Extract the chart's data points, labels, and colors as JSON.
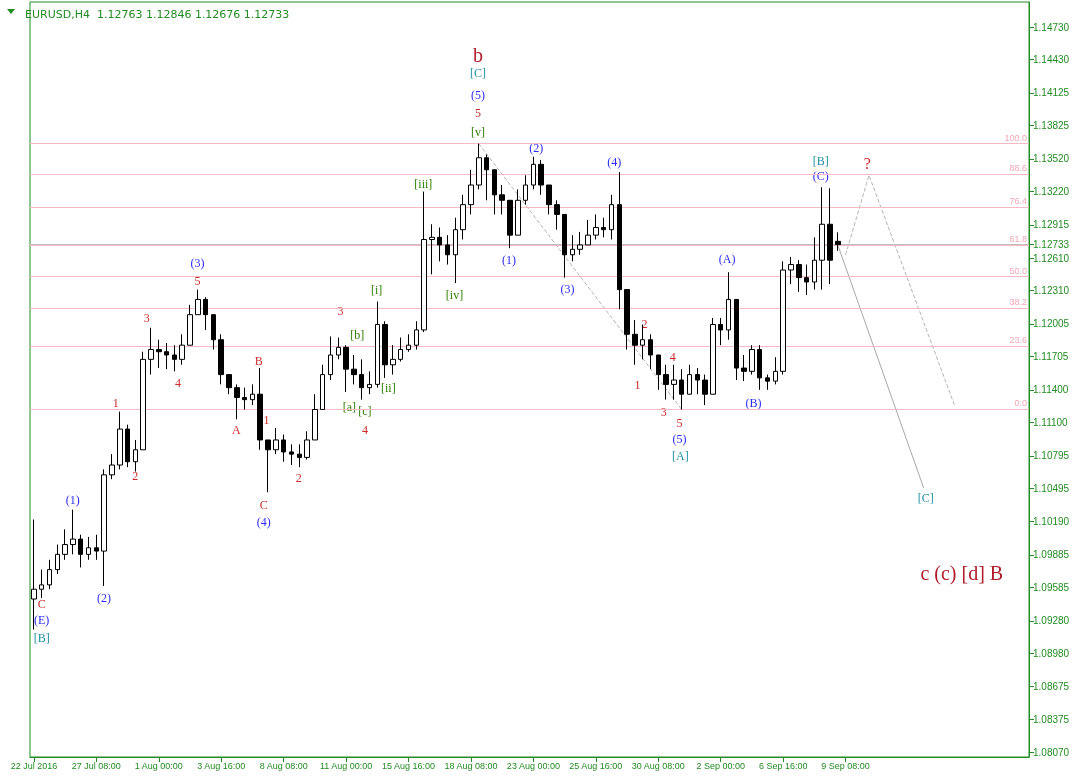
{
  "chart_data": {
    "type": "candlestick",
    "title": "EURUSD,H4  1.12763 1.12846 1.12676 1.12733",
    "color": "#000000",
    "categories": [
      "22 Jul 2016",
      null,
      null,
      null,
      null,
      null,
      null,
      null,
      "27 Jul 08:00",
      null,
      null,
      null,
      null,
      null,
      null,
      null,
      "1 Aug 00:00",
      null,
      null,
      null,
      null,
      null,
      null,
      null,
      "3 Aug 16:00",
      null,
      null,
      null,
      null,
      null,
      null,
      null,
      "8 Aug 08:00",
      null,
      null,
      null,
      null,
      null,
      null,
      null,
      "11 Aug 00:00",
      null,
      null,
      null,
      null,
      null,
      null,
      null,
      "15 Aug 16:00",
      null,
      null,
      null,
      null,
      null,
      null,
      null,
      "18 Aug 08:00",
      null,
      null,
      null,
      null,
      null,
      null,
      null,
      "23 Aug 00:00",
      null,
      null,
      null,
      null,
      null,
      null,
      null,
      "25 Aug 16:00",
      null,
      null,
      null,
      null,
      null,
      null,
      null,
      "30 Aug 08:00",
      null,
      null,
      null,
      null,
      null,
      null,
      null,
      "2 Sep 00:00",
      null,
      null,
      null,
      null,
      null,
      null,
      null,
      "6 Sep 16:00",
      null,
      null,
      null,
      null,
      null,
      null,
      null,
      "9 Sep 08:00",
      null,
      null,
      null,
      null,
      null,
      null,
      null,
      null,
      null,
      null,
      null,
      null,
      null,
      null,
      null,
      null,
      null,
      null,
      null,
      null,
      null,
      null,
      null
    ],
    "ohlc": [
      [
        1.0948,
        1.1021,
        1.092,
        1.0957
      ],
      [
        1.0957,
        1.0975,
        1.0949,
        1.0961
      ],
      [
        1.0961,
        1.0984,
        1.0957,
        1.0975
      ],
      [
        1.0975,
        1.0998,
        1.0971,
        1.0989
      ],
      [
        1.0989,
        1.1012,
        1.0984,
        1.0998
      ],
      [
        1.0998,
        1.103,
        1.0989,
        1.1003
      ],
      [
        1.1003,
        1.1007,
        1.0977,
        1.0989
      ],
      [
        1.0989,
        1.1005,
        1.0984,
        1.0995
      ],
      [
        1.0995,
        1.1007,
        1.0984,
        1.0992
      ],
      [
        1.0992,
        1.1067,
        1.096,
        1.1062
      ],
      [
        1.1062,
        1.1081,
        1.1058,
        1.1071
      ],
      [
        1.1071,
        1.112,
        1.1067,
        1.1104
      ],
      [
        1.1104,
        1.1108,
        1.1069,
        1.1074
      ],
      [
        1.1074,
        1.1094,
        1.1065,
        1.1085
      ],
      [
        1.1085,
        1.1175,
        1.1085,
        1.1168
      ],
      [
        1.1168,
        1.1197,
        1.1154,
        1.1177
      ],
      [
        1.1177,
        1.1186,
        1.116,
        1.1175
      ],
      [
        1.1175,
        1.1183,
        1.1159,
        1.1172
      ],
      [
        1.1172,
        1.1181,
        1.1157,
        1.1168
      ],
      [
        1.1168,
        1.1191,
        1.1163,
        1.1181
      ],
      [
        1.1181,
        1.1218,
        1.1181,
        1.1209
      ],
      [
        1.1209,
        1.1232,
        1.1209,
        1.1223
      ],
      [
        1.1223,
        1.1225,
        1.1195,
        1.1209
      ],
      [
        1.1209,
        1.1209,
        1.1177,
        1.1186
      ],
      [
        1.1186,
        1.1191,
        1.1145,
        1.1154
      ],
      [
        1.1154,
        1.1154,
        1.1136,
        1.1142
      ],
      [
        1.1142,
        1.1145,
        1.1113,
        1.1133
      ],
      [
        1.1133,
        1.1142,
        1.1122,
        1.1131
      ],
      [
        1.1131,
        1.1145,
        1.1126,
        1.1136
      ],
      [
        1.1136,
        1.116,
        1.1085,
        1.1094
      ],
      [
        1.1094,
        1.1094,
        1.1046,
        1.1085
      ],
      [
        1.1085,
        1.1105,
        1.1081,
        1.1094
      ],
      [
        1.1094,
        1.1099,
        1.1074,
        1.1083
      ],
      [
        1.1083,
        1.109,
        1.1071,
        1.1081
      ],
      [
        1.1081,
        1.109,
        1.1069,
        1.1078
      ],
      [
        1.1078,
        1.1102,
        1.1076,
        1.1094
      ],
      [
        1.1094,
        1.1136,
        1.1094,
        1.1122
      ],
      [
        1.1122,
        1.1163,
        1.1122,
        1.1154
      ],
      [
        1.1154,
        1.1189,
        1.1149,
        1.1172
      ],
      [
        1.1172,
        1.1188,
        1.1168,
        1.1179
      ],
      [
        1.1179,
        1.1181,
        1.1138,
        1.1159
      ],
      [
        1.1159,
        1.1172,
        1.1145,
        1.1154
      ],
      [
        1.1154,
        1.1168,
        1.1131,
        1.1142
      ],
      [
        1.1142,
        1.1157,
        1.1136,
        1.1145
      ],
      [
        1.1145,
        1.1221,
        1.1142,
        1.12
      ],
      [
        1.12,
        1.1203,
        1.1151,
        1.1163
      ],
      [
        1.1163,
        1.1181,
        1.1154,
        1.1168
      ],
      [
        1.1168,
        1.1188,
        1.1166,
        1.1177
      ],
      [
        1.1177,
        1.1191,
        1.1175,
        1.1181
      ],
      [
        1.1181,
        1.1203,
        1.1177,
        1.1195
      ],
      [
        1.1195,
        1.1322,
        1.1193,
        1.1278
      ],
      [
        1.1278,
        1.1292,
        1.1246,
        1.128
      ],
      [
        1.128,
        1.1289,
        1.1258,
        1.1273
      ],
      [
        1.1273,
        1.1282,
        1.1255,
        1.1264
      ],
      [
        1.1264,
        1.1298,
        1.1238,
        1.1287
      ],
      [
        1.1287,
        1.1319,
        1.1278,
        1.131
      ],
      [
        1.131,
        1.1342,
        1.1301,
        1.1328
      ],
      [
        1.1328,
        1.1366,
        1.1324,
        1.1353
      ],
      [
        1.1353,
        1.1356,
        1.1314,
        1.1342
      ],
      [
        1.1342,
        1.1342,
        1.1301,
        1.1319
      ],
      [
        1.1319,
        1.1328,
        1.1301,
        1.1314
      ],
      [
        1.1314,
        1.1314,
        1.127,
        1.1282
      ],
      [
        1.1282,
        1.1324,
        1.1282,
        1.1314
      ],
      [
        1.1314,
        1.1337,
        1.131,
        1.1328
      ],
      [
        1.1328,
        1.1354,
        1.1324,
        1.1347
      ],
      [
        1.1347,
        1.1351,
        1.1319,
        1.1328
      ],
      [
        1.1328,
        1.1328,
        1.1301,
        1.131
      ],
      [
        1.131,
        1.1314,
        1.1287,
        1.1301
      ],
      [
        1.1301,
        1.1301,
        1.1243,
        1.1264
      ],
      [
        1.1264,
        1.1282,
        1.1258,
        1.1269
      ],
      [
        1.1269,
        1.1285,
        1.1264,
        1.1273
      ],
      [
        1.1273,
        1.1296,
        1.1273,
        1.1282
      ],
      [
        1.1282,
        1.1301,
        1.1278,
        1.1289
      ],
      [
        1.1289,
        1.1298,
        1.128,
        1.1287
      ],
      [
        1.1287,
        1.1319,
        1.1278,
        1.131
      ],
      [
        1.131,
        1.134,
        1.1214,
        1.1232
      ],
      [
        1.1232,
        1.1232,
        1.1177,
        1.1191
      ],
      [
        1.1191,
        1.1204,
        1.1163,
        1.1181
      ],
      [
        1.1181,
        1.12,
        1.1168,
        1.1186
      ],
      [
        1.1186,
        1.1191,
        1.1159,
        1.1172
      ],
      [
        1.1172,
        1.1172,
        1.114,
        1.1154
      ],
      [
        1.1154,
        1.1163,
        1.1131,
        1.1145
      ],
      [
        1.1145,
        1.1163,
        1.1131,
        1.1149
      ],
      [
        1.1149,
        1.1159,
        1.1122,
        1.1136
      ],
      [
        1.1136,
        1.1163,
        1.1136,
        1.1154
      ],
      [
        1.1154,
        1.116,
        1.1136,
        1.1149
      ],
      [
        1.1149,
        1.1154,
        1.1126,
        1.1136
      ],
      [
        1.1136,
        1.1206,
        1.1136,
        1.12
      ],
      [
        1.12,
        1.1206,
        1.1181,
        1.1195
      ],
      [
        1.1195,
        1.1248,
        1.1186,
        1.1223
      ],
      [
        1.1223,
        1.1223,
        1.1149,
        1.116
      ],
      [
        1.116,
        1.1172,
        1.1148,
        1.1157
      ],
      [
        1.1157,
        1.1181,
        1.1154,
        1.1177
      ],
      [
        1.1177,
        1.1181,
        1.114,
        1.1151
      ],
      [
        1.1151,
        1.1154,
        1.114,
        1.1148
      ],
      [
        1.1148,
        1.117,
        1.1145,
        1.1157
      ],
      [
        1.1157,
        1.1258,
        1.1154,
        1.125
      ],
      [
        1.125,
        1.1262,
        1.1237,
        1.1255
      ],
      [
        1.1255,
        1.1259,
        1.123,
        1.1243
      ],
      [
        1.1243,
        1.1255,
        1.1227,
        1.1239
      ],
      [
        1.1239,
        1.128,
        1.1232,
        1.1259
      ],
      [
        1.1259,
        1.1326,
        1.1232,
        1.1292
      ],
      [
        1.1292,
        1.1325,
        1.1237,
        1.1259
      ],
      [
        1.12763,
        1.12846,
        1.12676,
        1.12733
      ],
      null,
      null,
      null,
      null,
      null,
      null,
      null,
      null,
      null,
      null,
      null,
      null,
      null,
      null,
      null,
      null,
      null,
      null,
      null,
      null,
      null,
      null,
      null,
      null
    ],
    "series": [
      {
        "type": "line",
        "color": "#b4b4b4",
        "line_style": "dashed",
        "values": [
          null,
          null,
          null,
          null,
          null,
          null,
          null,
          null,
          null,
          null,
          null,
          null,
          null,
          null,
          null,
          null,
          null,
          null,
          null,
          null,
          null,
          null,
          null,
          null,
          null,
          null,
          null,
          null,
          null,
          null,
          null,
          null,
          null,
          null,
          null,
          null,
          null,
          null,
          null,
          null,
          null,
          null,
          null,
          null,
          null,
          null,
          null,
          null,
          null,
          null,
          null,
          null,
          null,
          null,
          null,
          null,
          null,
          1.1366,
          null,
          null,
          null,
          null,
          null,
          null,
          null,
          null,
          null,
          null,
          null,
          null,
          null,
          null,
          null,
          null,
          null,
          null,
          null,
          null,
          null,
          null,
          null,
          null,
          null,
          1.1122,
          null,
          null,
          null,
          null,
          null,
          null,
          null,
          null,
          null,
          null,
          null,
          null,
          null,
          null,
          null,
          null,
          null,
          null,
          null,
          null,
          null,
          null,
          null,
          null,
          null,
          null,
          null,
          null,
          null,
          null,
          null,
          null,
          null,
          null,
          null,
          null,
          null,
          null,
          null,
          null,
          null,
          null,
          null,
          null
        ]
      },
      {
        "type": "line",
        "color": "#a8a8a8",
        "line_style": "solid",
        "values": [
          null,
          null,
          null,
          null,
          null,
          null,
          null,
          null,
          null,
          null,
          null,
          null,
          null,
          null,
          null,
          null,
          null,
          null,
          null,
          null,
          null,
          null,
          null,
          null,
          null,
          null,
          null,
          null,
          null,
          null,
          null,
          null,
          null,
          null,
          null,
          null,
          null,
          null,
          null,
          null,
          null,
          null,
          null,
          null,
          null,
          null,
          null,
          null,
          null,
          null,
          null,
          null,
          null,
          null,
          null,
          null,
          null,
          null,
          null,
          null,
          null,
          null,
          null,
          null,
          null,
          null,
          null,
          null,
          null,
          null,
          null,
          null,
          null,
          null,
          null,
          null,
          null,
          null,
          null,
          null,
          null,
          null,
          null,
          null,
          null,
          null,
          null,
          null,
          null,
          null,
          null,
          null,
          null,
          null,
          null,
          null,
          null,
          null,
          null,
          null,
          null,
          null,
          null,
          1.1273,
          null,
          null,
          null,
          null,
          null,
          null,
          null,
          null,
          null,
          null,
          1.105,
          null,
          null,
          null,
          null,
          null,
          null,
          null,
          null,
          null,
          null,
          null,
          null,
          null
        ]
      },
      {
        "type": "line",
        "color": "#b4b4b4",
        "line_style": "dashed",
        "values": [
          null,
          null,
          null,
          null,
          null,
          null,
          null,
          null,
          null,
          null,
          null,
          null,
          null,
          null,
          null,
          null,
          null,
          null,
          null,
          null,
          null,
          null,
          null,
          null,
          null,
          null,
          null,
          null,
          null,
          null,
          null,
          null,
          null,
          null,
          null,
          null,
          null,
          null,
          null,
          null,
          null,
          null,
          null,
          null,
          null,
          null,
          null,
          null,
          null,
          null,
          null,
          null,
          null,
          null,
          null,
          null,
          null,
          null,
          null,
          null,
          null,
          null,
          null,
          null,
          null,
          null,
          null,
          null,
          null,
          null,
          null,
          null,
          null,
          null,
          null,
          null,
          null,
          null,
          null,
          null,
          null,
          null,
          null,
          null,
          null,
          null,
          null,
          null,
          null,
          null,
          null,
          null,
          null,
          null,
          null,
          null,
          null,
          null,
          null,
          null,
          null,
          null,
          null,
          null,
          1.1264,
          null,
          null,
          1.1337,
          null,
          null,
          null,
          null,
          null,
          null,
          null,
          null,
          null,
          null,
          1.1125,
          null,
          null,
          null,
          null,
          null,
          null,
          null,
          null,
          null
        ]
      }
    ],
    "ylim": [
      1.0803,
      1.1496
    ],
    "yticks": [
      {
        "value": 1.0807,
        "label": "1.08070"
      },
      {
        "value": 1.08375,
        "label": "1.08375"
      },
      {
        "value": 1.08675,
        "label": "1.08675"
      },
      {
        "value": 1.0898,
        "label": "1.08980"
      },
      {
        "value": 1.0928,
        "label": "1.09280"
      },
      {
        "value": 1.09585,
        "label": "1.09585"
      },
      {
        "value": 1.09885,
        "label": "1.09885"
      },
      {
        "value": 1.1019,
        "label": "1.10190"
      },
      {
        "value": 1.10495,
        "label": "1.10495"
      },
      {
        "value": 1.10795,
        "label": "1.10795"
      },
      {
        "value": 1.111,
        "label": "1.11100"
      },
      {
        "value": 1.114,
        "label": "1.11400"
      },
      {
        "value": 1.11705,
        "label": "1.11705"
      },
      {
        "value": 1.12005,
        "label": "1.12005"
      },
      {
        "value": 1.1231,
        "label": "1.12310"
      },
      {
        "value": 1.1261,
        "label": "1.12610"
      },
      1.12733,
      {
        "value": 1.12915,
        "label": "1.12915"
      },
      {
        "value": 1.1322,
        "label": "1.13220"
      },
      {
        "value": 1.1352,
        "label": "1.13520"
      },
      {
        "value": 1.13825,
        "label": "1.13825"
      },
      {
        "value": 1.14125,
        "label": "1.14125"
      },
      {
        "value": 1.1443,
        "label": "1.14430"
      },
      {
        "value": 1.1473,
        "label": "1.14730"
      }
    ],
    "grid": false,
    "ref_lines": [
      {
        "axis": "y",
        "value": 1.12733,
        "color": "#c0c0c0"
      },
      {
        "axis": "y",
        "value": 1.1366,
        "color": "#f7b9c4"
      },
      {
        "axis": "y",
        "value": 1.1338,
        "color": "#f7b9c4"
      },
      {
        "axis": "y",
        "value": 1.1308,
        "color": "#f7b9c4"
      },
      {
        "axis": "y",
        "value": 1.1273,
        "color": "#f7b9c4"
      },
      {
        "axis": "y",
        "value": 1.1244,
        "color": "#f7b9c4"
      },
      {
        "axis": "y",
        "value": 1.1215,
        "color": "#f7b9c4"
      },
      {
        "axis": "y",
        "value": 1.118,
        "color": "#f7b9c4"
      },
      {
        "axis": "y",
        "value": 1.1122,
        "color": "#f7b9c4"
      }
    ],
    "annotations": [
      "C",
      "(E)",
      "[B]",
      "(1)",
      "(2)",
      "1",
      "2",
      "3",
      "4",
      "(3)",
      "5",
      "A",
      "B",
      "1",
      "C",
      "(4)",
      "2",
      "3",
      "[b]",
      "[a]",
      "[c]",
      "4",
      "[i]",
      "[ii]",
      "[iii]",
      "[iv]",
      "b",
      "[C]",
      "(5)",
      "5",
      "[v]",
      "(2)",
      "(1)",
      "(3)",
      "(4)",
      "2",
      "1",
      "4",
      "3",
      "5",
      "(5)",
      "[A]",
      "(A)",
      "(B)",
      "[B]",
      "(C)",
      "?",
      {
        "text": "[C]",
        "y": 1.105
      },
      "c (c) [d] B",
      {
        "text": "100.0",
        "y": 1.1366
      },
      {
        "text": "88.6",
        "y": 1.1338
      },
      {
        "text": "76.4",
        "y": 1.1308
      },
      {
        "text": "61.8",
        "y": 1.1273
      },
      {
        "text": "50.0",
        "y": 1.1244
      },
      {
        "text": "38.2",
        "y": 1.1215
      },
      {
        "text": "23.6",
        "y": 1.118
      },
      {
        "text": "0.0",
        "y": 1.1122
      }
    ]
  }
}
